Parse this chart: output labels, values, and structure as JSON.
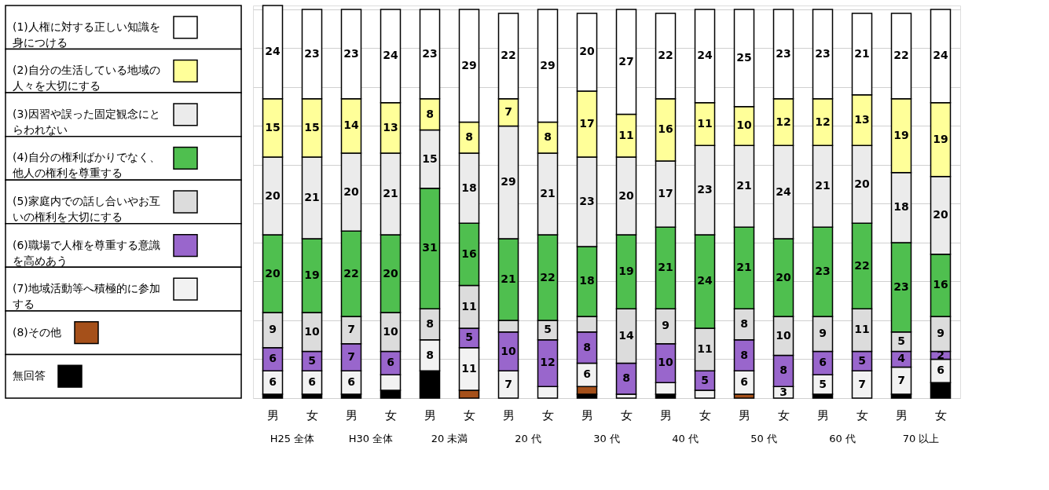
{
  "chart_data": {
    "type": "bar",
    "stacked": true,
    "legend": "left",
    "grid": "y",
    "categories": [
      "男",
      "女",
      "男",
      "女",
      "男",
      "女",
      "男",
      "女",
      "男",
      "女",
      "男",
      "女",
      "男",
      "女",
      "男",
      "女",
      "男",
      "女"
    ],
    "annotations": [
      "H25 全体",
      "H30 全体",
      "20 未満",
      "20 代",
      "30 代",
      "40 代",
      "50 代",
      "60 代",
      "70 以上"
    ],
    "ylim": [
      0,
      101
    ],
    "yticks": [
      {
        "value": 0,
        "label": null
      },
      {
        "value": 10,
        "label": null
      },
      {
        "value": 20,
        "label": null
      },
      {
        "value": 30,
        "label": null
      },
      {
        "value": 40,
        "label": null
      },
      {
        "value": 50,
        "label": null
      },
      {
        "value": 60,
        "label": null
      },
      {
        "value": 70,
        "label": null
      },
      {
        "value": 80,
        "label": null
      },
      {
        "value": 90,
        "label": null
      },
      {
        "value": 100,
        "label": null
      }
    ],
    "series": [
      {
        "name": "無回答",
        "color": "#000000",
        "values": [
          1,
          1,
          1,
          2,
          7,
          null,
          null,
          null,
          1,
          null,
          1,
          null,
          null,
          null,
          1,
          null,
          1,
          4
        ]
      },
      {
        "name": "(8)その他",
        "color": "#a5501a",
        "values": [
          null,
          null,
          null,
          null,
          null,
          2,
          null,
          null,
          2,
          null,
          null,
          null,
          1,
          null,
          null,
          null,
          null,
          null
        ]
      },
      {
        "name": "(7)地域活動等へ積極的に参加する",
        "color": "#f2f2f2",
        "values": [
          6,
          6,
          6,
          4,
          8,
          11,
          7,
          3,
          6,
          1,
          3,
          2,
          6,
          3,
          5,
          7,
          7,
          6
        ],
        "value_labels": [
          "6",
          "6",
          "6",
          null,
          "8",
          "11",
          "7",
          null,
          "6",
          null,
          null,
          null,
          "6",
          "3",
          "5",
          "7",
          "7",
          "6"
        ]
      },
      {
        "name": "(6)職場で人権を尊重する意識を高めあう",
        "color": "#9966cc",
        "values": [
          6,
          5,
          7,
          6,
          null,
          5,
          10,
          12,
          8,
          8,
          10,
          5,
          8,
          8,
          6,
          5,
          4,
          2
        ],
        "value_labels": [
          "6",
          "5",
          "7",
          "6",
          null,
          "5",
          "10",
          "12",
          "8",
          "8",
          "10",
          "5",
          "8",
          "8",
          "6",
          "5",
          "4",
          "2"
        ]
      },
      {
        "name": "(5)家庭内での話し合いやお互いの権利を大切にする",
        "color": "#dcdcdc",
        "values": [
          9,
          10,
          7,
          10,
          8,
          11,
          3,
          5,
          4,
          14,
          9,
          11,
          8,
          10,
          9,
          11,
          5,
          9
        ],
        "value_labels": [
          "9",
          "10",
          "7",
          "10",
          "8",
          "11",
          null,
          "5",
          null,
          "14",
          "9",
          "11",
          "8",
          "10",
          "9",
          "11",
          "5",
          "9"
        ]
      },
      {
        "name": "(4)自分の権利ばかりでなく、他人の権利を尊重する",
        "color": "#4fbf4f",
        "values": [
          20,
          19,
          22,
          20,
          31,
          16,
          21,
          22,
          18,
          19,
          21,
          24,
          21,
          20,
          23,
          22,
          23,
          16
        ],
        "value_labels": [
          "20",
          "19",
          "22",
          "20",
          "31",
          "16",
          "21",
          "22",
          "18",
          "19",
          "21",
          "24",
          "21",
          "20",
          "23",
          "22",
          "23",
          "16"
        ]
      },
      {
        "name": "(3)因習や誤った固定観念にとらわれない",
        "color": "#ebebeb",
        "values": [
          20,
          21,
          20,
          21,
          15,
          18,
          29,
          21,
          23,
          20,
          17,
          23,
          21,
          24,
          21,
          20,
          18,
          20
        ],
        "value_labels": [
          "20",
          "21",
          "20",
          "21",
          "15",
          "18",
          "29",
          "21",
          "23",
          "20",
          "17",
          "23",
          "21",
          "24",
          "21",
          "20",
          "18",
          "20"
        ]
      },
      {
        "name": "(2)自分の生活している地域の人々を大切にする",
        "color": "#ffff99",
        "values": [
          15,
          15,
          14,
          13,
          8,
          8,
          7,
          8,
          17,
          11,
          16,
          11,
          10,
          12,
          12,
          13,
          19,
          19
        ],
        "value_labels": [
          "15",
          "15",
          "14",
          "13",
          "8",
          "8",
          "7",
          "8",
          "17",
          "11",
          "16",
          "11",
          "10",
          "12",
          "12",
          "13",
          "19",
          "19"
        ]
      },
      {
        "name": "(1)人権に対する正しい知識を身につける",
        "color": "#ffffff",
        "values": [
          24,
          23,
          23,
          24,
          23,
          29,
          22,
          29,
          20,
          27,
          22,
          24,
          25,
          23,
          23,
          21,
          22,
          24
        ],
        "value_labels": [
          "24",
          "23",
          "23",
          "24",
          "23",
          "29",
          "22",
          "29",
          "20",
          "27",
          "22",
          "24",
          "25",
          "23",
          "23",
          "21",
          "22",
          "24"
        ]
      }
    ]
  }
}
